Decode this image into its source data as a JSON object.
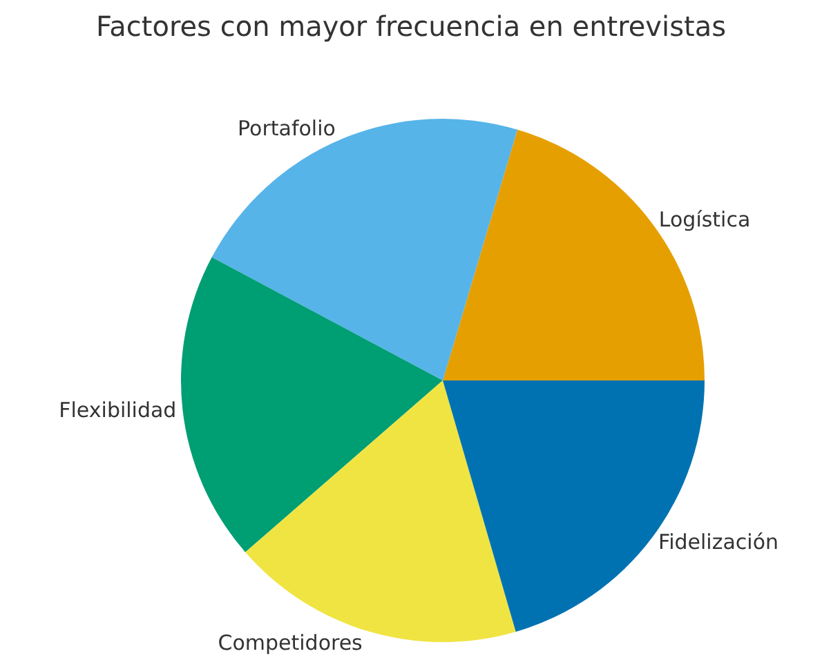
{
  "chart_data": {
    "type": "pie",
    "title": "Factores con mayor frecuencia en entrevistas",
    "categories": [
      "Logística",
      "Portafolio",
      "Flexibilidad",
      "Competidores",
      "Fidelización"
    ],
    "values": [
      20.4,
      21.8,
      19.2,
      18.1,
      20.5
    ],
    "colors": [
      "#e69f00",
      "#56b4e9",
      "#009e73",
      "#f0e442",
      "#0072b2"
    ],
    "legend": false
  }
}
